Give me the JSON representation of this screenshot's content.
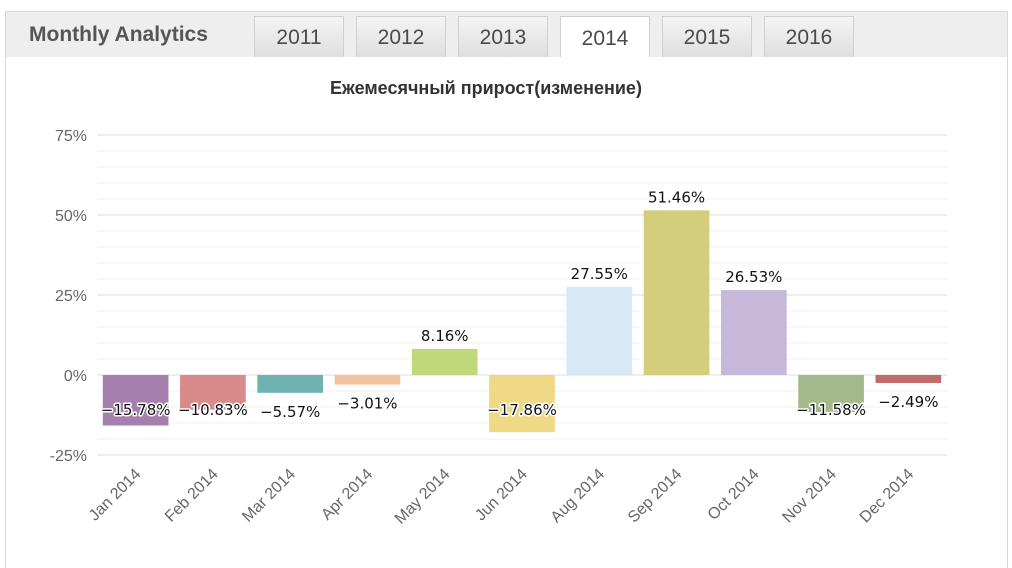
{
  "header": {
    "title": "Monthly Analytics",
    "tabs": [
      {
        "label": "2011",
        "active": false
      },
      {
        "label": "2012",
        "active": false
      },
      {
        "label": "2013",
        "active": false
      },
      {
        "label": "2014",
        "active": true
      },
      {
        "label": "2015",
        "active": false
      },
      {
        "label": "2016",
        "active": false
      }
    ]
  },
  "chart_data": {
    "type": "bar",
    "title": "Ежемесячный прирост(изменение)",
    "xlabel": "",
    "ylabel": "",
    "ylim": [
      -25,
      75
    ],
    "yticks": [
      "75%",
      "50%",
      "25%",
      "0%",
      "-25%"
    ],
    "ytick_values": [
      75,
      50,
      25,
      0,
      -25
    ],
    "grid": true,
    "categories": [
      "Jan 2014",
      "Feb 2014",
      "Mar 2014",
      "Apr 2014",
      "May 2014",
      "Jun 2014",
      "Aug 2014",
      "Sep 2014",
      "Oct 2014",
      "Nov 2014",
      "Dec 2014"
    ],
    "values": [
      -15.78,
      -10.83,
      -5.57,
      -3.01,
      8.16,
      -17.86,
      27.55,
      51.46,
      26.53,
      -11.58,
      -2.49
    ],
    "data_labels": [
      "−15.78%",
      "−10.83%",
      "−5.57%",
      "−3.01%",
      "8.16%",
      "−17.86%",
      "27.55%",
      "51.46%",
      "26.53%",
      "−11.58%",
      "−2.49%"
    ],
    "colors": [
      "#a57fae",
      "#d98a8a",
      "#6fb2b2",
      "#f3c3a0",
      "#bfd879",
      "#efd886",
      "#d7e8f7",
      "#d3cd7c",
      "#c6b8d8",
      "#a3b98c",
      "#c06c6c"
    ]
  }
}
